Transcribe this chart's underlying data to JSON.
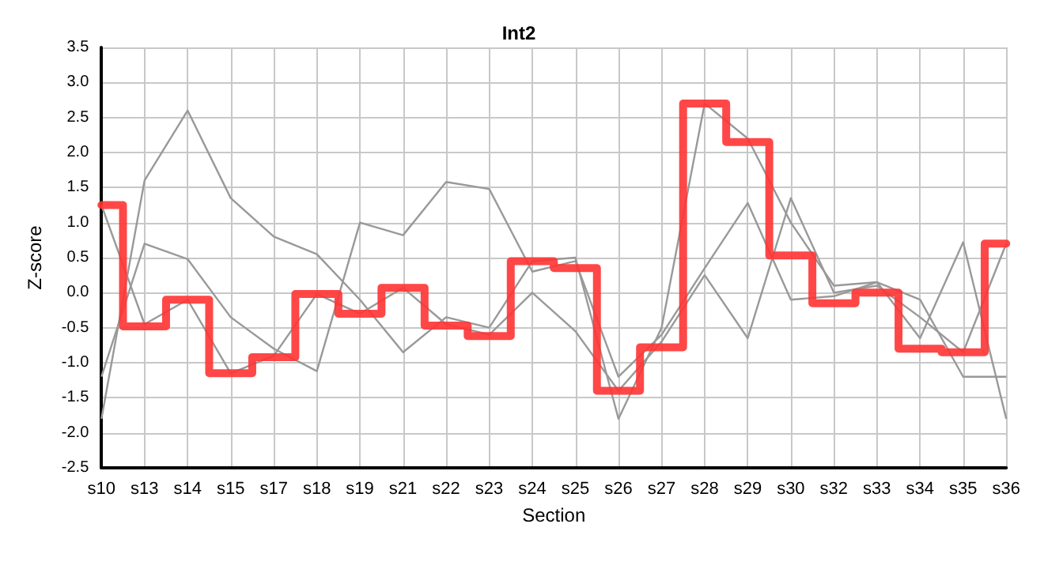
{
  "chart_data": {
    "type": "line",
    "title": "Int2",
    "xlabel": "Section",
    "ylabel": "Z-score",
    "categories": [
      "s10",
      "s13",
      "s14",
      "s15",
      "s17",
      "s18",
      "s19",
      "s21",
      "s22",
      "s23",
      "s24",
      "s25",
      "s26",
      "s27",
      "s28",
      "s29",
      "s30",
      "s32",
      "s33",
      "s34",
      "s35",
      "s36"
    ],
    "series": [
      {
        "color": "#999999",
        "values": [
          -1.8,
          1.6,
          2.6,
          1.35,
          0.8,
          0.55,
          -0.1,
          -0.85,
          -0.35,
          -0.5,
          0.45,
          0.5,
          -1.8,
          -0.5,
          2.7,
          2.2,
          1.0,
          0.1,
          0.15,
          -0.1,
          -1.2,
          -1.2
        ]
      },
      {
        "color": "#999999",
        "values": [
          -1.2,
          0.7,
          0.48,
          -0.35,
          -0.8,
          -1.12,
          1.0,
          0.82,
          1.58,
          1.48,
          0.3,
          0.45,
          -1.2,
          -0.6,
          0.35,
          1.28,
          -0.1,
          -0.05,
          0.15,
          -0.65,
          0.72,
          -1.8
        ]
      },
      {
        "color": "#999999",
        "values": [
          1.25,
          -0.45,
          -0.1,
          -1.15,
          -0.9,
          -0.02,
          -0.3,
          0.07,
          -0.45,
          -0.6,
          0.0,
          -0.55,
          -1.4,
          -0.7,
          0.25,
          -0.65,
          1.35,
          0.0,
          0.1,
          -0.35,
          -0.85,
          0.7
        ]
      },
      {
        "type": "step",
        "color": "#ff3333",
        "values": [
          1.25,
          -0.48,
          -0.1,
          -1.15,
          -0.92,
          -0.02,
          -0.3,
          0.07,
          -0.47,
          -0.62,
          0.45,
          0.35,
          -1.4,
          -0.78,
          2.7,
          2.15,
          0.53,
          -0.15,
          0.0,
          -0.8,
          -0.85,
          0.7
        ]
      }
    ],
    "ylim": [
      -2.5,
      3.5
    ],
    "yticks": [
      -2.5,
      {
        "value": -2,
        "label": "-2.0"
      },
      -1.5,
      {
        "value": -1,
        "label": "-1.0"
      },
      -0.5,
      {
        "value": 0,
        "label": "0.0"
      },
      0.5,
      {
        "value": 1,
        "label": "1.0"
      },
      1.5,
      {
        "value": 2,
        "label": "2.0"
      },
      2.5,
      {
        "value": 3,
        "label": "3.0"
      },
      3.5
    ],
    "grid": true,
    "marker": "none"
  }
}
